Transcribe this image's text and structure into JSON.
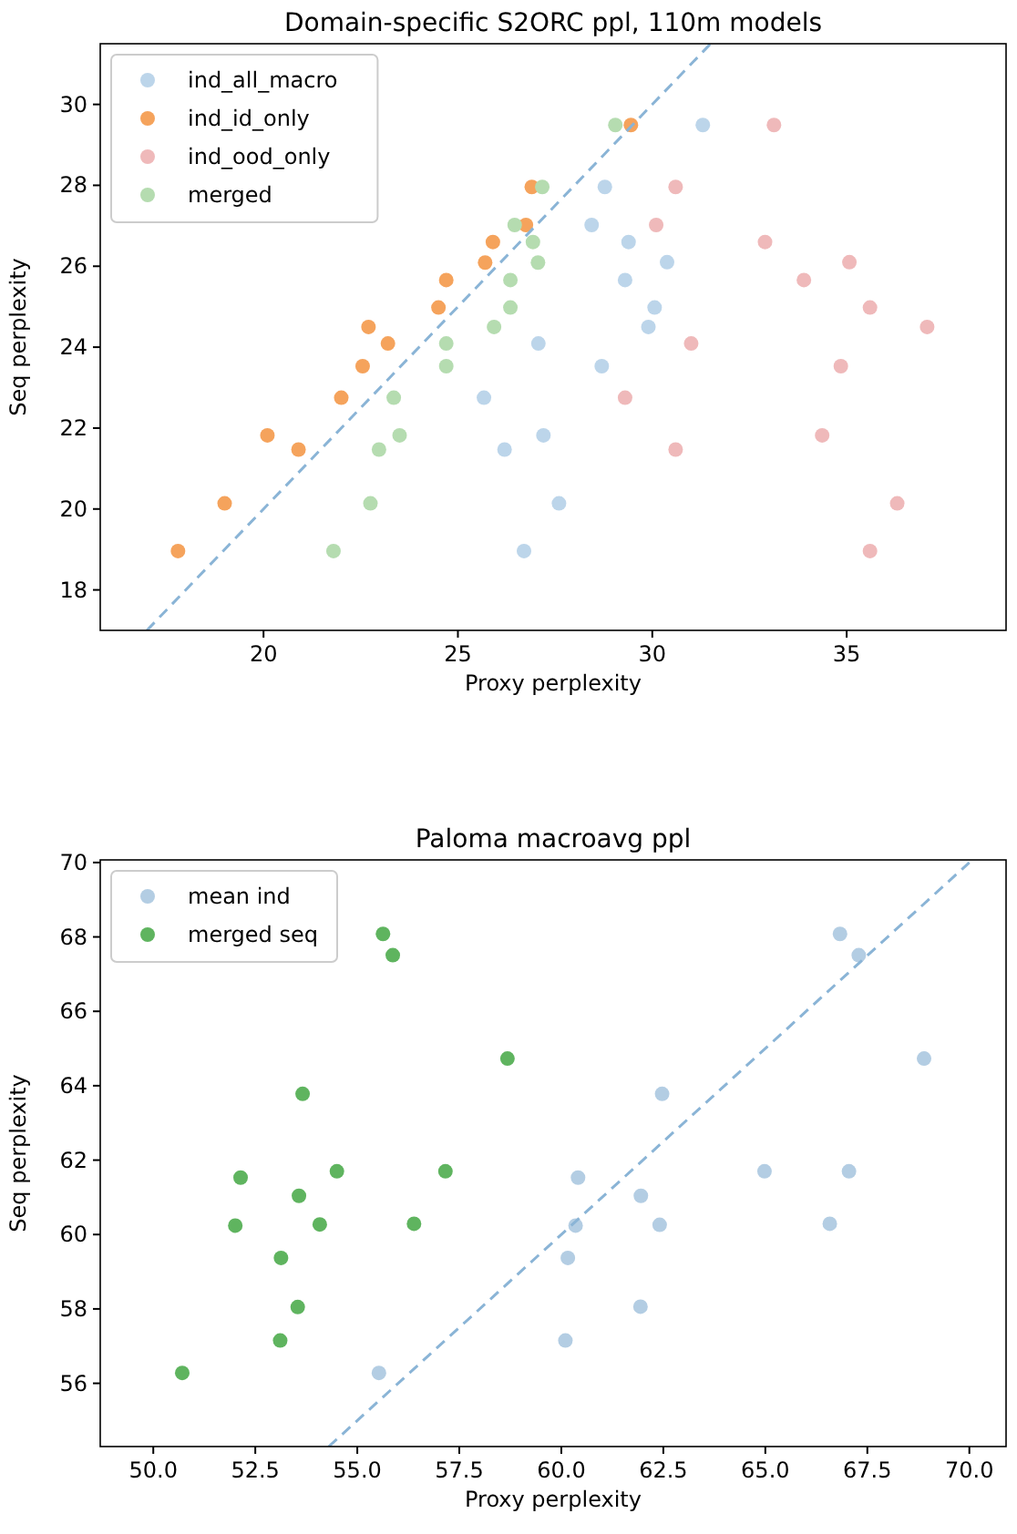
{
  "chart_data": [
    {
      "type": "scatter",
      "title": "Domain-specific S2ORC ppl, 110m models",
      "xlabel": "Proxy perplexity",
      "ylabel": "Seq perplexity",
      "xlim": [
        15.8,
        39.1
      ],
      "ylim": [
        17,
        31.5
      ],
      "xticks": [
        20,
        25,
        30,
        35
      ],
      "yticks": [
        18,
        20,
        22,
        24,
        26,
        28,
        30
      ],
      "legend": "top left",
      "marker": "circle",
      "grid": false,
      "series": [
        {
          "name": "ind_all_macro",
          "color": "#bcd5ea",
          "x": [
            25.67,
            26.2,
            26.7,
            27.07,
            27.2,
            27.6,
            28.7,
            28.44,
            28.78,
            29.3,
            29.39,
            29.9,
            30.06,
            30.38,
            31.3
          ],
          "values": [
            22.75,
            21.47,
            18.96,
            24.09,
            21.82,
            20.14,
            23.53,
            27.02,
            27.96,
            25.66,
            26.6,
            24.5,
            24.98,
            26.1,
            29.49
          ]
        },
        {
          "name": "ind_id_only",
          "color": "#f5a35c",
          "x": [
            17.8,
            19.0,
            20.1,
            20.9,
            22.0,
            22.7,
            23.2,
            22.55,
            24.5,
            24.7,
            25.7,
            25.9,
            26.75,
            26.9,
            29.45
          ],
          "values": [
            18.96,
            20.14,
            21.82,
            21.47,
            22.75,
            24.5,
            24.09,
            23.53,
            24.98,
            25.66,
            26.09,
            26.6,
            27.02,
            27.96,
            29.49
          ]
        },
        {
          "name": "ind_ood_only",
          "color": "#efb9ba",
          "x": [
            33.13,
            30.6,
            30.1,
            32.9,
            35.07,
            33.9,
            35.6,
            37.07,
            31.0,
            34.85,
            29.3,
            34.37,
            30.6,
            36.3,
            35.6
          ],
          "values": [
            29.49,
            27.96,
            27.02,
            26.6,
            26.1,
            25.66,
            24.98,
            24.5,
            24.09,
            23.53,
            22.75,
            21.82,
            21.47,
            20.14,
            18.96
          ]
        },
        {
          "name": "merged",
          "color": "#b5dcb0",
          "x": [
            21.8,
            22.75,
            22.97,
            23.5,
            23.35,
            24.7,
            24.7,
            25.93,
            26.35,
            26.35,
            27.06,
            26.93,
            26.46,
            27.17,
            29.05
          ],
          "values": [
            18.96,
            20.14,
            21.47,
            21.82,
            22.75,
            24.09,
            23.53,
            24.5,
            24.98,
            25.66,
            26.09,
            26.6,
            27.02,
            27.96,
            29.49
          ]
        },
        {
          "type": "line",
          "color": "#8ab4d6",
          "line_style": "dashed",
          "marker": "none",
          "x": [
            17,
            31.5
          ],
          "values": [
            17,
            31.5
          ]
        }
      ]
    },
    {
      "type": "scatter",
      "title": "Paloma macroavg ppl",
      "xlabel": "Proxy perplexity",
      "ylabel": "Seq perplexity",
      "xlim": [
        48.7,
        70.9
      ],
      "ylim": [
        54.3,
        70.07
      ],
      "xticks": [
        {
          "value": 50,
          "label": "50.0"
        },
        {
          "value": 52.5,
          "label": "52.5"
        },
        {
          "value": 55,
          "label": "55.0"
        },
        {
          "value": 57.5,
          "label": "57.5"
        },
        {
          "value": 60,
          "label": "60.0"
        },
        {
          "value": 62.5,
          "label": "62.5"
        },
        {
          "value": 65,
          "label": "65.0"
        },
        {
          "value": 67.5,
          "label": "67.5"
        },
        {
          "value": 70,
          "label": "70.0"
        }
      ],
      "yticks": [
        56,
        58,
        60,
        62,
        64,
        66,
        68,
        70
      ],
      "legend": "top left",
      "marker": "circle",
      "grid": false,
      "series": [
        {
          "name": "mean ind",
          "color": "#b3cde3",
          "x": [
            55.53,
            66.83,
            67.29,
            68.89,
            62.47,
            60.41,
            64.98,
            67.05,
            61.95,
            60.35,
            62.41,
            66.58,
            60.16,
            61.94,
            60.1
          ],
          "values": [
            56.28,
            68.08,
            67.51,
            64.73,
            63.78,
            61.53,
            61.7,
            61.7,
            61.04,
            60.24,
            60.26,
            60.29,
            59.37,
            58.06,
            57.15
          ]
        },
        {
          "name": "merged seq",
          "color": "#5fb45f",
          "x": [
            50.71,
            55.63,
            55.87,
            58.68,
            53.66,
            52.14,
            54.5,
            57.16,
            53.57,
            52.01,
            54.08,
            56.39,
            53.13,
            53.54,
            53.11
          ],
          "values": [
            56.28,
            68.08,
            67.51,
            64.73,
            63.78,
            61.53,
            61.7,
            61.7,
            61.04,
            60.24,
            60.27,
            60.29,
            59.37,
            58.05,
            57.15
          ]
        },
        {
          "type": "line",
          "color": "#8ab4d6",
          "line_style": "dashed",
          "marker": "none",
          "x": [
            54.3,
            70
          ],
          "values": [
            54.3,
            70
          ]
        }
      ]
    }
  ]
}
